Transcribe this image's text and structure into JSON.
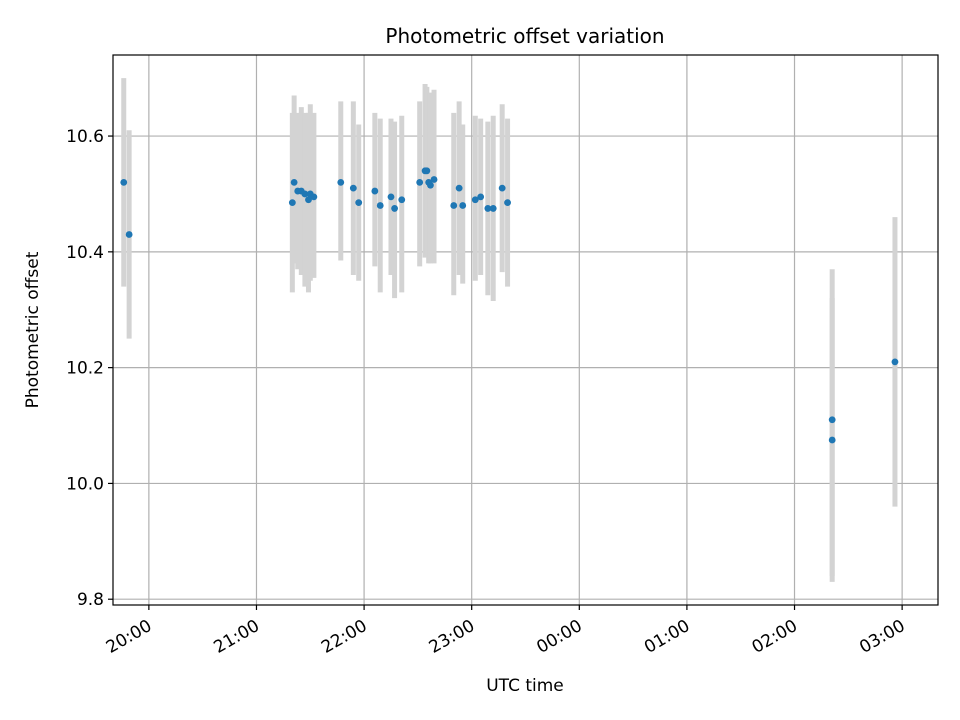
{
  "chart_data": {
    "type": "scatter",
    "title": "Photometric offset variation",
    "xlabel": "UTC time",
    "ylabel": "Photometric offset",
    "grid": true,
    "xlim": [
      "19:40",
      "03:20"
    ],
    "ylim": [
      9.79,
      10.74
    ],
    "x_ticks": [
      "20:00",
      "21:00",
      "22:00",
      "23:00",
      "00:00",
      "01:00",
      "02:00",
      "03:00"
    ],
    "y_ticks": [
      "9.8",
      "10.0",
      "10.2",
      "10.4",
      "10.6"
    ],
    "colors": {
      "points": "#1f77b4",
      "errorbars": "#d3d3d3",
      "grid": "#b0b0b0"
    },
    "points": [
      {
        "x": "19:46",
        "y": 10.52,
        "ylo": 10.34,
        "yhi": 10.7
      },
      {
        "x": "19:49",
        "y": 10.43,
        "ylo": 10.25,
        "yhi": 10.61
      },
      {
        "x": "21:20",
        "y": 10.485,
        "ylo": 10.33,
        "yhi": 10.64
      },
      {
        "x": "21:21",
        "y": 10.52,
        "ylo": 10.38,
        "yhi": 10.67
      },
      {
        "x": "21:23",
        "y": 10.505,
        "ylo": 10.37,
        "yhi": 10.64
      },
      {
        "x": "21:25",
        "y": 10.505,
        "ylo": 10.36,
        "yhi": 10.65
      },
      {
        "x": "21:27",
        "y": 10.5,
        "ylo": 10.34,
        "yhi": 10.64
      },
      {
        "x": "21:29",
        "y": 10.49,
        "ylo": 10.33,
        "yhi": 10.64
      },
      {
        "x": "21:30",
        "y": 10.5,
        "ylo": 10.35,
        "yhi": 10.655
      },
      {
        "x": "21:32",
        "y": 10.495,
        "ylo": 10.355,
        "yhi": 10.64
      },
      {
        "x": "21:47",
        "y": 10.52,
        "ylo": 10.385,
        "yhi": 10.66
      },
      {
        "x": "21:54",
        "y": 10.51,
        "ylo": 10.36,
        "yhi": 10.66
      },
      {
        "x": "21:57",
        "y": 10.485,
        "ylo": 10.35,
        "yhi": 10.62
      },
      {
        "x": "22:06",
        "y": 10.505,
        "ylo": 10.375,
        "yhi": 10.64
      },
      {
        "x": "22:09",
        "y": 10.48,
        "ylo": 10.33,
        "yhi": 10.63
      },
      {
        "x": "22:15",
        "y": 10.495,
        "ylo": 10.36,
        "yhi": 10.63
      },
      {
        "x": "22:17",
        "y": 10.475,
        "ylo": 10.32,
        "yhi": 10.625
      },
      {
        "x": "22:21",
        "y": 10.49,
        "ylo": 10.33,
        "yhi": 10.635
      },
      {
        "x": "22:31",
        "y": 10.52,
        "ylo": 10.375,
        "yhi": 10.66
      },
      {
        "x": "22:34",
        "y": 10.54,
        "ylo": 10.39,
        "yhi": 10.69
      },
      {
        "x": "22:35",
        "y": 10.54,
        "ylo": 10.395,
        "yhi": 10.685
      },
      {
        "x": "22:36",
        "y": 10.52,
        "ylo": 10.38,
        "yhi": 10.67
      },
      {
        "x": "22:37",
        "y": 10.515,
        "ylo": 10.38,
        "yhi": 10.675
      },
      {
        "x": "22:39",
        "y": 10.525,
        "ylo": 10.38,
        "yhi": 10.68
      },
      {
        "x": "22:50",
        "y": 10.48,
        "ylo": 10.325,
        "yhi": 10.64
      },
      {
        "x": "22:53",
        "y": 10.51,
        "ylo": 10.36,
        "yhi": 10.66
      },
      {
        "x": "22:55",
        "y": 10.48,
        "ylo": 10.345,
        "yhi": 10.62
      },
      {
        "x": "23:02",
        "y": 10.49,
        "ylo": 10.35,
        "yhi": 10.635
      },
      {
        "x": "23:05",
        "y": 10.495,
        "ylo": 10.36,
        "yhi": 10.63
      },
      {
        "x": "23:09",
        "y": 10.475,
        "ylo": 10.325,
        "yhi": 10.625
      },
      {
        "x": "23:12",
        "y": 10.475,
        "ylo": 10.315,
        "yhi": 10.635
      },
      {
        "x": "23:17",
        "y": 10.51,
        "ylo": 10.365,
        "yhi": 10.655
      },
      {
        "x": "23:20",
        "y": 10.485,
        "ylo": 10.34,
        "yhi": 10.63
      },
      {
        "x": "02:21",
        "y": 10.11,
        "ylo": 9.83,
        "yhi": 10.37
      },
      {
        "x": "02:21",
        "y": 10.075,
        "ylo": 9.84,
        "yhi": 10.32
      },
      {
        "x": "02:56",
        "y": 10.21,
        "ylo": 9.96,
        "yhi": 10.46
      }
    ]
  }
}
